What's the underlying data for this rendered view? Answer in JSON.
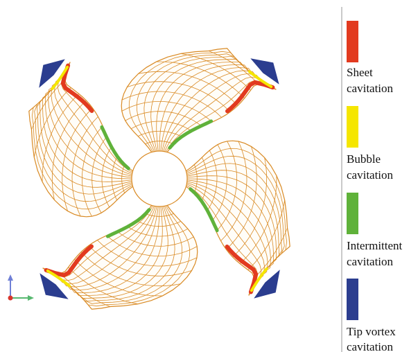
{
  "figure": {
    "type": "propeller-cavitation-pattern",
    "blade_count": 4,
    "colors": {
      "mesh": "#d98a24",
      "sheet": "#e23a1f",
      "bubble": "#f5e600",
      "intermittent": "#5fb23a",
      "tip_vortex": "#2b3d8f",
      "divider": "#b8b8b8"
    }
  },
  "legend": [
    {
      "key": "sheet",
      "line1": "Sheet",
      "line2": "cavitation"
    },
    {
      "key": "bubble",
      "line1": "Bubble",
      "line2": "cavitation"
    },
    {
      "key": "intermittent",
      "line1": "Intermittent",
      "line2": "cavitation"
    },
    {
      "key": "tip_vortex",
      "line1": "Tip vortex",
      "line2": "cavitation"
    }
  ],
  "axis_triad": {
    "icon": "xyz-axis-triad-icon"
  }
}
